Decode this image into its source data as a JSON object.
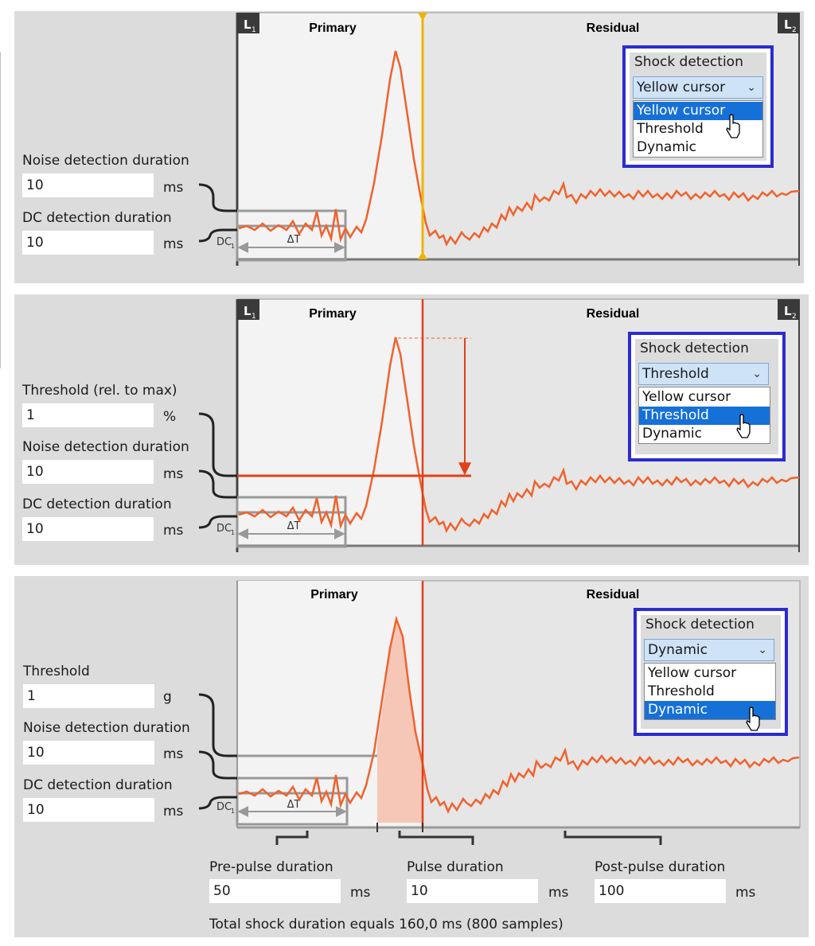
{
  "labels": {
    "primary": "Primary",
    "residual": "Residual",
    "l1": "L",
    "l1_sub": "1",
    "l2": "L",
    "l2_sub": "2",
    "dc": "DC",
    "dc_sub": "1",
    "delta_t": "ΔT",
    "shock_detection": "Shock detection"
  },
  "shock_detection_options": [
    "Yellow cursor",
    "Threshold",
    "Dynamic"
  ],
  "panel1": {
    "selected": "Yellow cursor",
    "fields": [
      {
        "label": "Noise detection duration",
        "value": "10",
        "unit": "ms"
      },
      {
        "label": "DC detection duration",
        "value": "10",
        "unit": "ms"
      }
    ]
  },
  "panel2": {
    "selected": "Threshold",
    "fields": [
      {
        "label": "Threshold (rel. to max)",
        "value": "1",
        "unit": "%"
      },
      {
        "label": "Noise detection duration",
        "value": "10",
        "unit": "ms"
      },
      {
        "label": "DC detection duration",
        "value": "10",
        "unit": "ms"
      }
    ]
  },
  "panel3": {
    "selected": "Dynamic",
    "fields": [
      {
        "label": "Threshold",
        "value": "1",
        "unit": "g"
      },
      {
        "label": "Noise detection duration",
        "value": "10",
        "unit": "ms"
      },
      {
        "label": "DC detection duration",
        "value": "10",
        "unit": "ms"
      }
    ],
    "durations": [
      {
        "label": "Pre-pulse duration",
        "value": "50",
        "unit": "ms"
      },
      {
        "label": "Pulse duration",
        "value": "10",
        "unit": "ms"
      },
      {
        "label": "Post-pulse duration",
        "value": "100",
        "unit": "ms"
      }
    ],
    "total": "Total shock duration equals 160,0 ms (800 samples)"
  },
  "colors": {
    "signal": "#f0622d",
    "yellow_cursor": "#f0b400",
    "red_cursor": "#e0401a",
    "select_blue": "#1570d8",
    "frame_blue": "#2b2bd0"
  }
}
